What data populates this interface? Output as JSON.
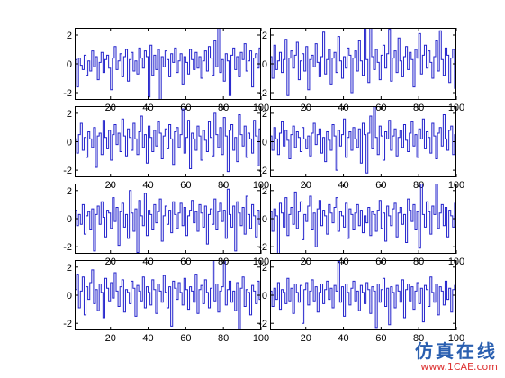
{
  "chart_data": {
    "type": "line",
    "style": "stairs",
    "layout": {
      "rows": 4,
      "cols": 2
    },
    "line_color": "#2222cc",
    "x_ticks": [
      20,
      40,
      60,
      80,
      100
    ],
    "y_ticks": [
      -2,
      0,
      2
    ],
    "xlim": [
      1,
      100
    ],
    "ylim": [
      -2.5,
      2.5
    ],
    "grid": false,
    "subplots": [
      {
        "name": "row1-col1",
        "values": [
          0.3,
          -1.6,
          0.4,
          -0.1,
          -0.4,
          0.6,
          -0.8,
          0.2,
          -0.5,
          0.9,
          -0.2,
          0.5,
          -1.1,
          0.1,
          0.8,
          -0.6,
          0.3,
          0.6,
          -0.3,
          -1.8,
          0.4,
          1.2,
          -0.4,
          0.2,
          0.7,
          -0.9,
          0.5,
          1.0,
          -1.2,
          0.3,
          0.8,
          -0.5,
          0.2,
          -0.7,
          1.1,
          0.4,
          -0.3,
          0.9,
          0.5,
          -2.3,
          1.3,
          -0.8,
          0.6,
          -0.4,
          1.0,
          -3.0,
          0.5,
          -0.2,
          0.9,
          0.3,
          -0.9,
          0.7,
          0.1,
          1.1,
          -0.6,
          0.2,
          0.7,
          -1.4,
          0.5,
          0.1,
          -0.7,
          1.0,
          0.3,
          -0.4,
          0.8,
          -0.3,
          0.5,
          -1.0,
          0.2,
          0.9,
          -0.5,
          1.2,
          0.4,
          -0.8,
          1.6,
          -0.2,
          2.6,
          -0.6,
          0.3,
          -1.2,
          0.7,
          0.2,
          -2.2,
          0.6,
          1.1,
          -0.4,
          0.5,
          -0.9,
          0.8,
          0.3,
          1.4,
          -0.5,
          0.2,
          0.9,
          -1.6,
          0.4,
          0.7,
          -0.3,
          1.1,
          0.2
        ]
      },
      {
        "name": "row1-col2",
        "values": [
          0.5,
          -1.0,
          1.3,
          -0.4,
          0.2,
          0.8,
          -0.6,
          0.3,
          1.7,
          -2.2,
          0.4,
          0.9,
          -0.3,
          0.6,
          1.5,
          -1.1,
          0.2,
          0.7,
          -0.5,
          1.2,
          -1.8,
          0.3,
          0.6,
          -0.2,
          1.4,
          0.1,
          -0.9,
          0.5,
          2.2,
          -0.7,
          0.3,
          1.0,
          -1.4,
          0.4,
          0.8,
          -0.6,
          1.9,
          0.2,
          -1.0,
          0.5,
          -0.3,
          1.1,
          0.6,
          -2.0,
          0.4,
          0.9,
          -0.5,
          1.6,
          0.2,
          -0.8,
          3.0,
          0.3,
          -1.3,
          2.6,
          0.5,
          -0.4,
          1.0,
          0.1,
          -1.1,
          0.6,
          1.3,
          -0.3,
          0.7,
          2.4,
          -1.2,
          0.4,
          0.9,
          -0.6,
          1.8,
          0.2,
          -0.9,
          0.5,
          1.2,
          -0.4,
          0.8,
          0.3,
          -1.6,
          1.0,
          0.4,
          2.1,
          -0.7,
          0.6,
          1.3,
          -0.3,
          0.9,
          0.1,
          -1.0,
          0.5,
          1.6,
          -0.5,
          2.3,
          0.3,
          -0.8,
          1.1,
          0.6,
          -1.3,
          0.4,
          1.0,
          -1.7,
          0.5
        ]
      },
      {
        "name": "row2-col1",
        "values": [
          0.2,
          -0.8,
          0.5,
          1.3,
          -0.6,
          0.3,
          -1.1,
          0.7,
          0.2,
          -0.4,
          1.0,
          -1.8,
          0.4,
          0.6,
          -0.9,
          1.5,
          0.3,
          -0.5,
          0.8,
          -1.3,
          0.5,
          1.2,
          -0.2,
          0.6,
          -0.7,
          1.6,
          0.4,
          -1.0,
          0.9,
          0.3,
          -0.6,
          1.3,
          0.2,
          -0.9,
          0.7,
          1.8,
          -0.4,
          0.5,
          -1.5,
          1.1,
          0.3,
          -0.7,
          0.8,
          -0.3,
          1.4,
          0.6,
          -1.2,
          0.4,
          0.9,
          -0.5,
          1.2,
          0.2,
          -1.6,
          0.7,
          1.0,
          -0.4,
          0.5,
          2.3,
          -0.8,
          0.3,
          1.5,
          -1.9,
          0.6,
          0.2,
          -0.6,
          1.1,
          0.4,
          -1.3,
          0.8,
          0.1,
          -0.7,
          1.4,
          0.3,
          -1.0,
          2.0,
          0.5,
          -0.4,
          1.0,
          -0.9,
          1.7,
          0.4,
          -2.1,
          0.8,
          1.2,
          -0.6,
          0.3,
          -1.4,
          1.9,
          0.5,
          -0.3,
          1.1,
          -1.1,
          0.6,
          0.2,
          -0.8,
          1.5,
          0.4,
          -1.7,
          0.9,
          -0.2
        ]
      },
      {
        "name": "row2-col2",
        "values": [
          0.4,
          -0.6,
          1.0,
          0.2,
          -0.9,
          0.6,
          1.4,
          -0.3,
          0.8,
          0.1,
          -1.2,
          0.5,
          1.1,
          -0.4,
          0.7,
          0.3,
          -0.7,
          1.0,
          0.2,
          -0.5,
          0.4,
          -1.0,
          0.6,
          1.3,
          -0.2,
          0.5,
          0.9,
          -0.8,
          0.3,
          -1.4,
          0.7,
          0.1,
          -0.6,
          1.2,
          0.4,
          -2.0,
          0.8,
          -0.3,
          0.5,
          1.6,
          -1.1,
          0.3,
          0.7,
          -0.6,
          1.0,
          0.2,
          -0.4,
          0.9,
          -1.5,
          1.3,
          0.5,
          -2.2,
          0.6,
          1.8,
          -0.5,
          2.6,
          0.3,
          -0.9,
          1.1,
          0.4,
          -1.3,
          0.7,
          0.2,
          1.5,
          -0.6,
          0.4,
          0.9,
          -1.0,
          0.3,
          0.8,
          -0.4,
          1.2,
          0.1,
          -0.7,
          0.6,
          1.4,
          -0.3,
          0.5,
          -1.1,
          0.9,
          0.2,
          1.6,
          -0.5,
          0.7,
          0.3,
          -0.8,
          1.3,
          0.4,
          -1.2,
          0.6,
          1.0,
          -0.3,
          1.9,
          0.2,
          -0.6,
          0.8,
          1.1,
          -0.9,
          0.5,
          0.3
        ]
      },
      {
        "name": "row3-col1",
        "values": [
          0.6,
          -0.5,
          0.3,
          -0.4,
          1.0,
          -1.1,
          0.2,
          0.5,
          -0.8,
          0.7,
          -2.3,
          0.3,
          0.9,
          -0.4,
          1.2,
          0.1,
          -1.3,
          0.6,
          0.4,
          -0.7,
          1.5,
          -0.2,
          0.8,
          -1.9,
          0.5,
          1.1,
          -0.6,
          0.3,
          -1.4,
          2.0,
          0.4,
          -0.9,
          0.7,
          -2.4,
          1.3,
          0.2,
          -0.5,
          1.8,
          -1.2,
          0.6,
          0.3,
          -0.8,
          1.0,
          -0.3,
          0.5,
          1.4,
          -1.6,
          0.2,
          0.9,
          -0.4,
          0.6,
          -1.0,
          1.2,
          0.3,
          -0.7,
          0.4,
          1.1,
          -0.5,
          0.8,
          -1.2,
          0.2,
          0.6,
          1.3,
          -0.3,
          0.5,
          -0.9,
          1.0,
          0.4,
          -0.6,
          0.9,
          -1.8,
          0.3,
          0.7,
          -0.4,
          1.4,
          -0.8,
          0.5,
          1.1,
          -0.2,
          0.6,
          -1.4,
          2.1,
          0.3,
          -0.6,
          0.9,
          -2.3,
          1.2,
          0.4,
          -0.5,
          0.8,
          -1.1,
          1.6,
          0.3,
          -0.7,
          1.0,
          0.2,
          -1.3,
          0.6,
          -0.4,
          0.5
        ]
      },
      {
        "name": "row3-col2",
        "values": [
          0.5,
          -0.9,
          0.7,
          0.2,
          -2.6,
          1.1,
          0.4,
          -0.6,
          1.5,
          -1.2,
          0.3,
          0.8,
          -0.4,
          1.9,
          -0.7,
          0.5,
          1.2,
          -1.5,
          0.3,
          -0.2,
          0.9,
          1.6,
          -0.8,
          0.4,
          -2.0,
          0.7,
          1.3,
          -0.5,
          0.6,
          0.2,
          -1.1,
          1.0,
          0.4,
          -0.3,
          0.8,
          1.5,
          -0.9,
          0.5,
          0.2,
          -0.6,
          1.1,
          -1.4,
          0.7,
          0.3,
          -0.8,
          0.4,
          1.0,
          -0.5,
          0.6,
          -1.0,
          0.2,
          -0.3,
          0.8,
          -1.2,
          0.5,
          0.3,
          -0.9,
          0.6,
          1.3,
          -0.7,
          0.4,
          -1.6,
          0.9,
          0.2,
          -0.5,
          0.7,
          1.1,
          -1.3,
          0.4,
          0.8,
          -0.4,
          0.3,
          -1.7,
          1.4,
          0.6,
          -0.2,
          1.0,
          -0.8,
          0.5,
          -2.1,
          2.7,
          0.3,
          -0.6,
          1.2,
          0.5,
          -1.1,
          0.9,
          0.3,
          2.6,
          -0.7,
          0.4,
          1.0,
          -0.5,
          0.8,
          -1.3,
          0.6,
          0.2,
          -0.6,
          1.1,
          0.4
        ]
      },
      {
        "name": "row4-col1",
        "values": [
          0.4,
          1.5,
          -0.9,
          0.3,
          1.3,
          -1.4,
          0.6,
          -0.3,
          0.9,
          1.8,
          -0.6,
          0.4,
          -1.1,
          0.8,
          0.2,
          -1.6,
          1.2,
          0.5,
          -0.4,
          0.9,
          -0.2,
          1.6,
          0.3,
          -0.8,
          0.6,
          1.1,
          -1.2,
          0.4,
          0.2,
          -0.6,
          1.0,
          0.5,
          -1.5,
          0.7,
          0.3,
          -0.4,
          1.3,
          -0.9,
          0.6,
          0.2,
          -0.7,
          1.1,
          0.4,
          -1.3,
          0.8,
          0.3,
          -0.5,
          1.4,
          0.2,
          -0.9,
          0.6,
          -2.2,
          1.0,
          0.5,
          -0.3,
          0.9,
          0.2,
          -0.7,
          1.2,
          0.4,
          -1.0,
          0.6,
          0.3,
          -0.5,
          1.5,
          -1.3,
          0.4,
          0.7,
          -0.6,
          1.1,
          0.2,
          -0.9,
          0.5,
          2.6,
          -0.4,
          0.8,
          -1.2,
          0.3,
          0.6,
          2.5,
          -0.7,
          0.4,
          1.0,
          -0.5,
          0.3,
          -1.1,
          0.9,
          -2.5,
          0.5,
          1.3,
          -0.8,
          0.4,
          0.2,
          -1.4,
          0.7,
          0.3,
          -0.6,
          1.0,
          -0.3,
          0.5
        ]
      },
      {
        "name": "row4-col2",
        "values": [
          0.3,
          -0.8,
          0.5,
          -0.3,
          0.9,
          -1.0,
          0.4,
          0.2,
          -0.6,
          1.2,
          -0.4,
          0.5,
          -1.3,
          0.8,
          0.2,
          -0.5,
          0.7,
          -2.0,
          0.4,
          0.9,
          -0.7,
          0.3,
          1.1,
          -0.4,
          0.6,
          -1.2,
          0.2,
          0.8,
          -0.6,
          0.4,
          1.0,
          -0.3,
          0.5,
          -0.9,
          0.7,
          0.3,
          2.4,
          -0.5,
          0.6,
          -1.5,
          0.8,
          0.2,
          -0.7,
          0.5,
          1.0,
          -0.4,
          0.3,
          -1.1,
          0.7,
          0.2,
          -0.6,
          0.9,
          0.4,
          -1.3,
          0.6,
          0.3,
          -2.3,
          0.8,
          -0.5,
          0.4,
          1.2,
          -0.8,
          0.5,
          -2.1,
          0.6,
          0.2,
          -0.9,
          0.7,
          0.3,
          -0.5,
          1.1,
          -1.6,
          0.4,
          0.8,
          -0.4,
          0.6,
          -1.0,
          0.3,
          0.9,
          -0.6,
          0.5,
          -1.9,
          0.7,
          0.4,
          -0.8,
          1.3,
          0.2,
          -0.5,
          0.8,
          -1.4,
          0.6,
          0.3,
          -0.7,
          1.0,
          -0.3,
          0.5,
          -1.2,
          0.4,
          0.7,
          -0.5
        ]
      }
    ]
  },
  "watermark": {
    "main": "仿真在线",
    "sub": "www.1CAE.com"
  }
}
